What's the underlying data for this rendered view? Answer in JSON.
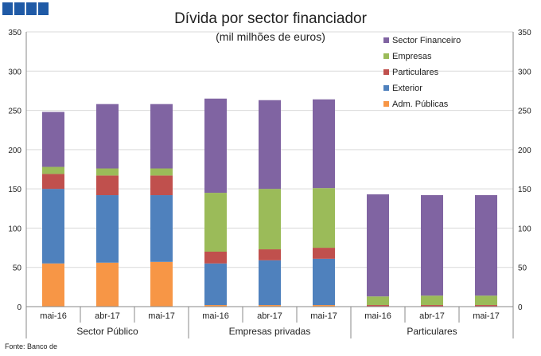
{
  "header": {
    "logo_colors": [
      "#1f5aa6",
      "#1f5aa6",
      "#1f5aa6",
      "#1f5aa6"
    ]
  },
  "chart_data": {
    "type": "bar",
    "stacked": true,
    "title": "Dívida por sector financiador",
    "subtitle": "(mil milhões de euros)",
    "source": "Fonte: Banco de",
    "ylim": [
      0,
      350
    ],
    "yticks": [
      0,
      50,
      100,
      150,
      200,
      250,
      300,
      350
    ],
    "grid": true,
    "secondary_y_axis": true,
    "legend_position": "top-right",
    "groups": [
      {
        "name": "Sector Público",
        "categories": [
          "mai-16",
          "abr-17",
          "mai-17"
        ]
      },
      {
        "name": "Empresas privadas",
        "categories": [
          "mai-16",
          "abr-17",
          "mai-17"
        ]
      },
      {
        "name": "Particulares",
        "categories": [
          "mai-16",
          "abr-17",
          "mai-17"
        ]
      }
    ],
    "categories": [
      "mai-16",
      "abr-17",
      "mai-17",
      "mai-16",
      "abr-17",
      "mai-17",
      "mai-16",
      "abr-17",
      "mai-17"
    ],
    "series": [
      {
        "name": "Adm. Públicas",
        "color": "#f79646",
        "values": [
          55,
          56,
          57,
          2,
          2,
          2,
          0,
          0,
          0
        ]
      },
      {
        "name": "Exterior",
        "color": "#4f81bd",
        "values": [
          95,
          86,
          85,
          53,
          57,
          59,
          0,
          0,
          0
        ]
      },
      {
        "name": "Particulares",
        "color": "#c0504d",
        "values": [
          19,
          25,
          25,
          15,
          14,
          14,
          2,
          2,
          2
        ]
      },
      {
        "name": "Empresas",
        "color": "#9bbb59",
        "values": [
          9,
          9,
          9,
          75,
          77,
          76,
          11,
          12,
          12
        ]
      },
      {
        "name": "Sector Financeiro",
        "color": "#8064a2",
        "values": [
          70,
          82,
          82,
          120,
          113,
          113,
          130,
          128,
          128
        ]
      }
    ]
  }
}
